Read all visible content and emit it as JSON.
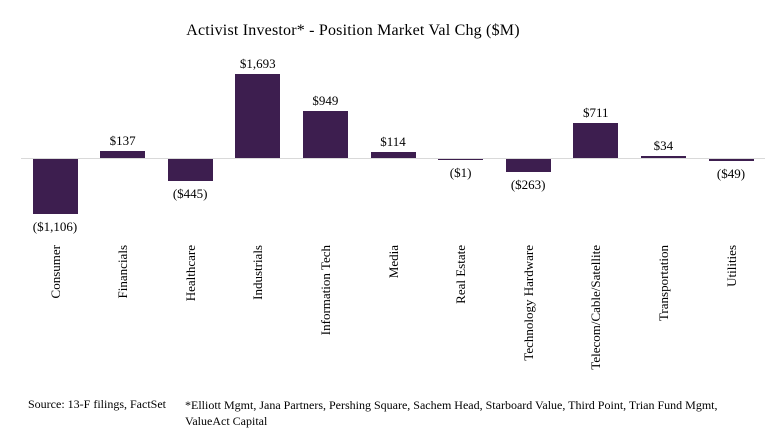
{
  "title": "Activist Investor* - Position Market Val Chg ($M)",
  "chart_data": {
    "type": "bar",
    "title": "Activist Investor* - Position Market Val Chg ($M)",
    "categories": [
      "Consumer",
      "Financials",
      "Healthcare",
      "Industrials",
      "Information Tech",
      "Media",
      "Real Estate",
      "Technology Hardware",
      "Telecom/Cable/Satellite",
      "Transportation",
      "Utilities"
    ],
    "values": [
      -1106,
      137,
      -445,
      1693,
      949,
      114,
      -1,
      -263,
      711,
      34,
      -49
    ],
    "value_labels": [
      "($1,106)",
      "$137",
      "($445)",
      "$1,693",
      "$949",
      "$114",
      "($1)",
      "($263)",
      "$711",
      "$34",
      "($49)"
    ],
    "xlabel": "",
    "ylabel": "",
    "ylim": [
      -1200,
      1800
    ],
    "grid": false,
    "legend": "none",
    "bar_color": "#3D1E4F",
    "axis_line_color": "#D9D9D9",
    "label_color": "#000000"
  },
  "footer": {
    "source": "Source: 13-F filings, FactSet",
    "footnote": "*Elliott Mgmt, Jana Partners, Pershing Square, Sachem Head, Starboard Value, Third Point, Trian Fund Mgmt, ValueAct Capital"
  }
}
